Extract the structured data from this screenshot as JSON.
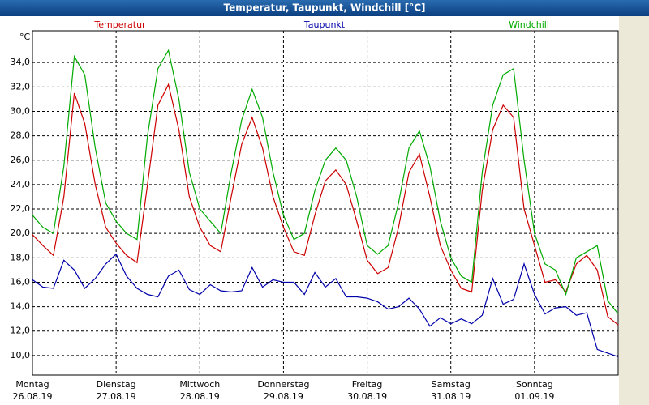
{
  "chart_data": {
    "type": "line",
    "title": "Temperatur, Taupunkt, Windchill [°C]",
    "y_unit": "°C",
    "x": [
      0,
      3,
      6,
      9,
      12,
      15,
      18,
      21,
      24,
      27,
      30,
      33,
      36,
      39,
      42,
      45,
      48,
      51,
      54,
      57,
      60,
      63,
      66,
      69,
      72,
      75,
      78,
      81,
      84,
      87,
      90,
      93,
      96,
      99,
      102,
      105,
      108,
      111,
      114,
      117,
      120,
      123,
      126,
      129,
      132,
      135,
      138,
      141,
      144,
      147,
      150,
      153,
      156,
      159,
      162,
      165,
      168
    ],
    "series": [
      {
        "name": "Temperatur",
        "color": "#cc0000",
        "values": [
          19.9,
          19.0,
          18.2,
          23.0,
          31.5,
          29.0,
          24.0,
          20.5,
          19.2,
          18.2,
          17.6,
          24.0,
          30.5,
          32.2,
          28.5,
          23.0,
          20.5,
          19.0,
          18.5,
          23.0,
          27.3,
          29.5,
          27.0,
          23.0,
          20.5,
          18.5,
          18.2,
          21.5,
          24.3,
          25.2,
          24.0,
          21.0,
          17.8,
          16.7,
          17.2,
          20.5,
          25.0,
          26.5,
          23.0,
          19.0,
          17.0,
          15.5,
          15.2,
          23.5,
          28.5,
          30.5,
          29.5,
          22.0,
          19.0,
          16.0,
          16.2,
          15.2,
          17.5,
          18.2,
          17.0,
          13.2,
          12.5
        ]
      },
      {
        "name": "Taupunkt",
        "color": "#0000aa",
        "values": [
          16.2,
          15.6,
          15.5,
          17.8,
          17.0,
          15.5,
          16.3,
          17.5,
          18.3,
          16.5,
          15.5,
          15.0,
          14.8,
          16.5,
          17.0,
          15.4,
          15.0,
          15.8,
          15.3,
          15.2,
          15.3,
          17.2,
          15.6,
          16.2,
          16.0,
          16.0,
          15.0,
          16.8,
          15.6,
          16.3,
          14.8,
          14.8,
          14.7,
          14.4,
          13.8,
          14.0,
          14.7,
          13.8,
          12.4,
          13.1,
          12.6,
          13.0,
          12.6,
          13.3,
          16.3,
          14.2,
          14.6,
          17.5,
          15.0,
          13.4,
          13.9,
          14.0,
          13.3,
          13.5,
          10.5,
          10.2,
          9.9
        ]
      },
      {
        "name": "Windchill",
        "color": "#00aa00",
        "values": [
          21.5,
          20.5,
          20.0,
          25.5,
          34.5,
          33.0,
          27.0,
          22.5,
          21.0,
          20.0,
          19.5,
          28.0,
          33.5,
          35.0,
          31.0,
          25.0,
          22.0,
          21.0,
          20.0,
          25.0,
          29.3,
          31.8,
          29.5,
          25.0,
          21.5,
          19.5,
          20.0,
          23.5,
          26.0,
          27.0,
          26.0,
          23.0,
          19.0,
          18.3,
          19.0,
          22.5,
          27.0,
          28.4,
          25.5,
          21.0,
          18.0,
          16.5,
          16.0,
          25.0,
          30.5,
          33.0,
          33.5,
          26.0,
          20.0,
          17.5,
          17.0,
          15.0,
          18.0,
          18.5,
          19.0,
          14.5,
          13.4
        ]
      }
    ],
    "xlim": [
      0,
      168
    ],
    "xticks": [
      {
        "value": 0,
        "label": "Montag"
      },
      {
        "value": 24,
        "label": "Dienstag"
      },
      {
        "value": 48,
        "label": "Mittwoch"
      },
      {
        "value": 72,
        "label": "Donnerstag"
      },
      {
        "value": 96,
        "label": "Freitag"
      },
      {
        "value": 120,
        "label": "Samstag"
      },
      {
        "value": 144,
        "label": "Sonntag"
      }
    ],
    "xtick_dates": [
      "26.08.19",
      "27.08.19",
      "28.08.19",
      "29.08.19",
      "30.08.19",
      "31.08.19",
      "01.09.19"
    ],
    "ylim": [
      8.4,
      36.6
    ],
    "yticks": [
      {
        "value": 10,
        "label": "10,0"
      },
      {
        "value": 12,
        "label": "12,0"
      },
      {
        "value": 14,
        "label": "14,0"
      },
      {
        "value": 16,
        "label": "16,0"
      },
      {
        "value": 18,
        "label": "18,0"
      },
      {
        "value": 20,
        "label": "20,0"
      },
      {
        "value": 22,
        "label": "22,0"
      },
      {
        "value": 24,
        "label": "24,0"
      },
      {
        "value": 26,
        "label": "26,0"
      },
      {
        "value": 28,
        "label": "28,0"
      },
      {
        "value": 30,
        "label": "30,0"
      },
      {
        "value": 32,
        "label": "32,0"
      },
      {
        "value": 34,
        "label": "34,0"
      }
    ],
    "grid": true
  }
}
